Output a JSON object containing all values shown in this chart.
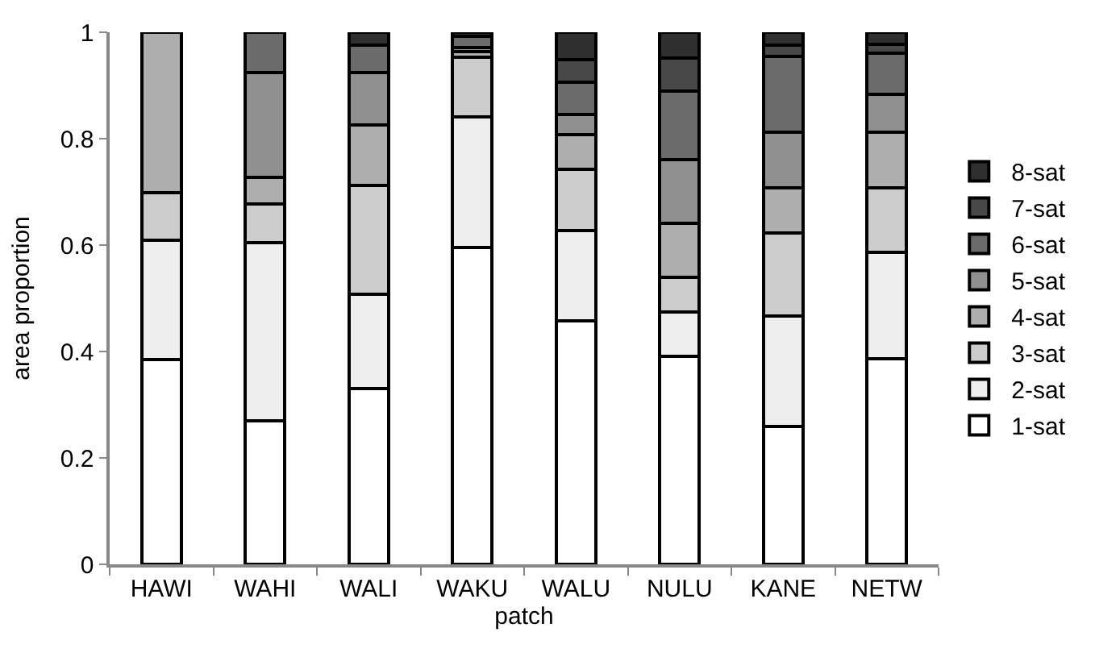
{
  "chart_data": {
    "type": "bar",
    "stacked": true,
    "xlabel": "patch",
    "ylabel": "area proportion",
    "categories": [
      "HAWI",
      "WAHI",
      "WALI",
      "WAKU",
      "WALU",
      "NULU",
      "KANE",
      "NETW"
    ],
    "ylim": [
      0,
      1
    ],
    "yticks": [
      0,
      0.2,
      0.4,
      0.6,
      0.8,
      1
    ],
    "legend": "right",
    "series": [
      {
        "name": "1-sat",
        "color": "#ffffff",
        "values": [
          0.385,
          0.27,
          0.33,
          0.595,
          0.458,
          0.391,
          0.259,
          0.387
        ]
      },
      {
        "name": "2-sat",
        "color": "#eeeeee",
        "values": [
          0.224,
          0.335,
          0.178,
          0.246,
          0.169,
          0.084,
          0.207,
          0.199
        ]
      },
      {
        "name": "3-sat",
        "color": "#cccccc",
        "values": [
          0.089,
          0.072,
          0.204,
          0.112,
          0.116,
          0.064,
          0.157,
          0.122
        ]
      },
      {
        "name": "4-sat",
        "color": "#aeaeae",
        "values": [
          0.302,
          0.051,
          0.114,
          0.01,
          0.065,
          0.102,
          0.085,
          0.104
        ]
      },
      {
        "name": "5-sat",
        "color": "#909090",
        "values": [
          null,
          0.196,
          0.098,
          0.008,
          0.037,
          0.119,
          0.104,
          0.071
        ]
      },
      {
        "name": "6-sat",
        "color": "#6b6b6b",
        "values": [
          null,
          0.076,
          0.052,
          0.021,
          0.061,
          0.13,
          0.143,
          0.077
        ]
      },
      {
        "name": "7-sat",
        "color": "#484848",
        "values": [
          null,
          null,
          null,
          null,
          0.042,
          0.061,
          0.021,
          0.017
        ]
      },
      {
        "name": "8-sat",
        "color": "#2f2f2f",
        "values": [
          null,
          null,
          0.024,
          0.008,
          0.052,
          0.049,
          0.024,
          0.023
        ]
      }
    ]
  }
}
